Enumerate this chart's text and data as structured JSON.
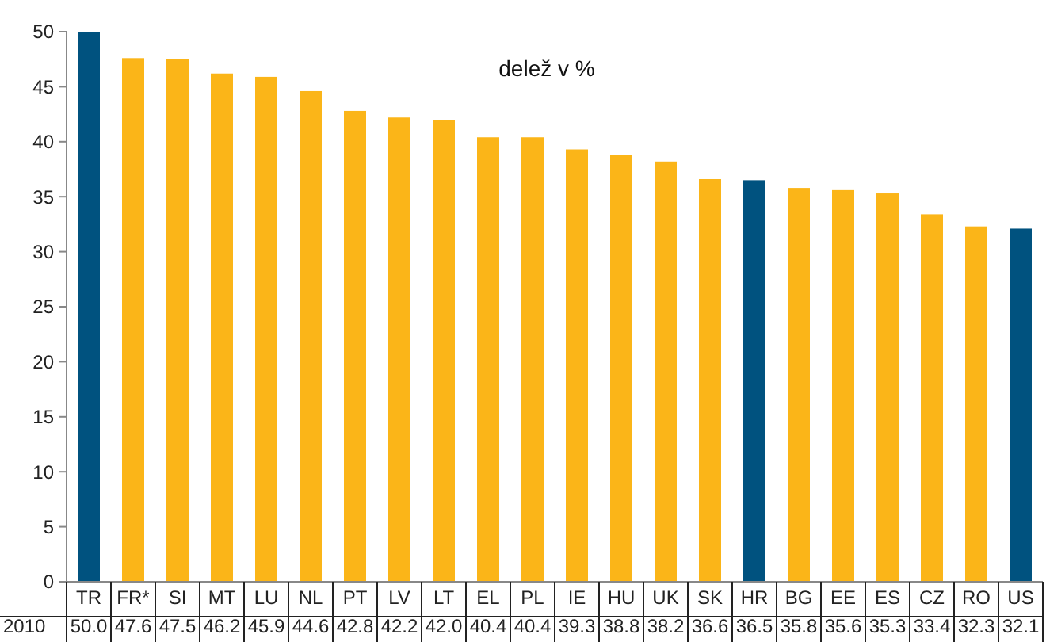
{
  "chart_data": {
    "type": "bar",
    "title": "delež v %",
    "categories": [
      "TR",
      "FR*",
      "SI",
      "MT",
      "LU",
      "NL",
      "PT",
      "LV",
      "LT",
      "EL",
      "PL",
      "IE",
      "HU",
      "UK",
      "SK",
      "HR",
      "BG",
      "EE",
      "ES",
      "CZ",
      "RO",
      "US"
    ],
    "series": [
      {
        "name": "2010",
        "colors": [
          "#00527f",
          "#fbb518",
          "#fbb518",
          "#fbb518",
          "#fbb518",
          "#fbb518",
          "#fbb518",
          "#fbb518",
          "#fbb518",
          "#fbb518",
          "#fbb518",
          "#fbb518",
          "#fbb518",
          "#fbb518",
          "#fbb518",
          "#00527f",
          "#fbb518",
          "#fbb518",
          "#fbb518",
          "#fbb518",
          "#fbb518",
          "#00527f"
        ],
        "values": [
          50.0,
          47.6,
          47.5,
          46.2,
          45.9,
          44.6,
          42.8,
          42.2,
          42.0,
          40.4,
          40.4,
          39.3,
          38.8,
          38.2,
          36.6,
          36.5,
          35.8,
          35.6,
          35.3,
          33.4,
          32.3,
          32.1
        ],
        "value_labels": [
          "50.0",
          "47.6",
          "47.5",
          "46.2",
          "45.9",
          "44.6",
          "42.8",
          "42.2",
          "42.0",
          "40.4",
          "40.4",
          "39.3",
          "38.8",
          "38.2",
          "36.6",
          "36.5",
          "35.8",
          "35.6",
          "35.3",
          "33.4",
          "32.3",
          "32.1"
        ]
      }
    ],
    "ylim": [
      0,
      50
    ],
    "yticks": [
      0,
      5,
      10,
      15,
      20,
      25,
      30,
      35,
      40,
      45,
      50
    ]
  }
}
